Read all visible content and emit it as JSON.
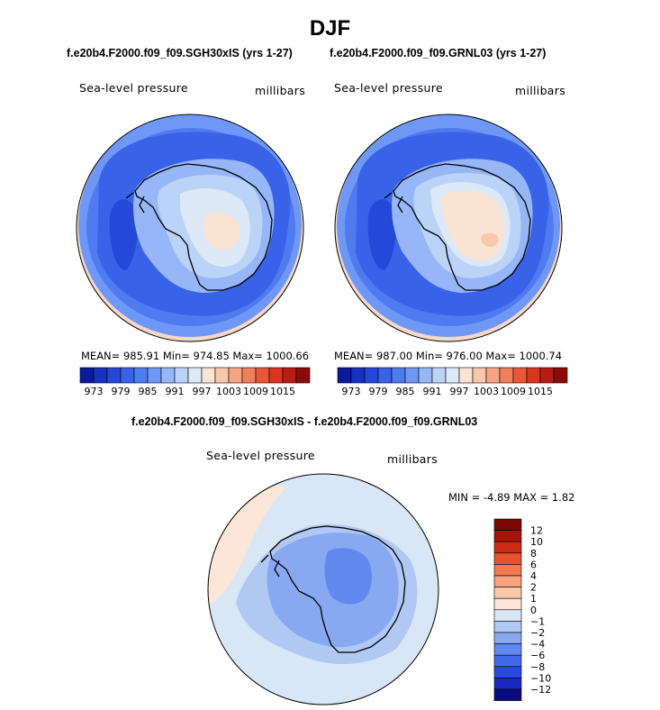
{
  "figure": {
    "season": "DJF",
    "case_a": "f.e20b4.F2000.f09_f09.SGH30xIS (yrs 1-27)",
    "case_b": "f.e20b4.F2000.f09_f09.GRNL03 (yrs 1-27)",
    "diff_title": "f.e20b4.F2000.f09_f09.SGH30xIS - f.e20b4.F2000.f09_f09.GRNL03"
  },
  "panels": {
    "a": {
      "variable": "Sea-level pressure",
      "units": "millibars",
      "stats": "MEAN= 985.91   Min= 974.85   Max= 1000.66",
      "mean": 985.91,
      "min": 974.85,
      "max": 1000.66
    },
    "b": {
      "variable": "Sea-level pressure",
      "units": "millibars",
      "stats": "MEAN= 987.00   Min= 976.00   Max= 1000.74",
      "mean": 987.0,
      "min": 976.0,
      "max": 1000.74
    },
    "diff": {
      "variable": "Sea-level pressure",
      "units": "millibars",
      "stats": "MIN =  -4.89  MAX =    1.82",
      "min": -4.89,
      "max": 1.82
    }
  },
  "colorbar_main": {
    "colors": [
      "#0a1a9a",
      "#1630c0",
      "#2448d8",
      "#3862e8",
      "#4f7bf0",
      "#6f98f6",
      "#97b6f8",
      "#bcd3f8",
      "#dde9f6",
      "#fbe3d4",
      "#f8c7ac",
      "#f6a584",
      "#f27f5c",
      "#ea5737",
      "#d9351f",
      "#b81c12",
      "#8a0c08"
    ],
    "tick_labels": [
      "973",
      "979",
      "985",
      "991",
      "997",
      "1003",
      "1009",
      "1015"
    ]
  },
  "colorbar_diff": {
    "colors": [
      "#0a0a80",
      "#1a2ac0",
      "#2848e0",
      "#4068ea",
      "#6088ef",
      "#88a8f2",
      "#b0c8f2",
      "#d8e6f6",
      "#fce6d8",
      "#f8c8a8",
      "#f6a47e",
      "#f27a52",
      "#e8502e",
      "#cc2c14",
      "#a81408",
      "#7a0804"
    ],
    "tick_labels": [
      "12",
      "10",
      "8",
      "6",
      "4",
      "2",
      "1",
      "0",
      "−1",
      "−2",
      "−4",
      "−6",
      "−8",
      "−10",
      "−12"
    ]
  },
  "map_colors": {
    "ocean_far": "#f6d8c8",
    "ring_outer": "#6f98f6",
    "ring_mid": "#4f7bf0",
    "trough": "#3862e8",
    "trough_core": "#2448d8",
    "coast_band": "#97b6f8",
    "plateau_light": "#bcd3f8",
    "plateau_white": "#dde9f6",
    "plateau_warm": "#fbe3d4",
    "plateau_warm2": "#f8c7ac",
    "diff_bg": "#d8e6f6",
    "diff_pos": "#fce6d8",
    "diff_neg1": "#b0c8f2",
    "diff_neg2": "#88a8f2",
    "diff_neg3": "#6088ef",
    "coast": "#000000"
  }
}
